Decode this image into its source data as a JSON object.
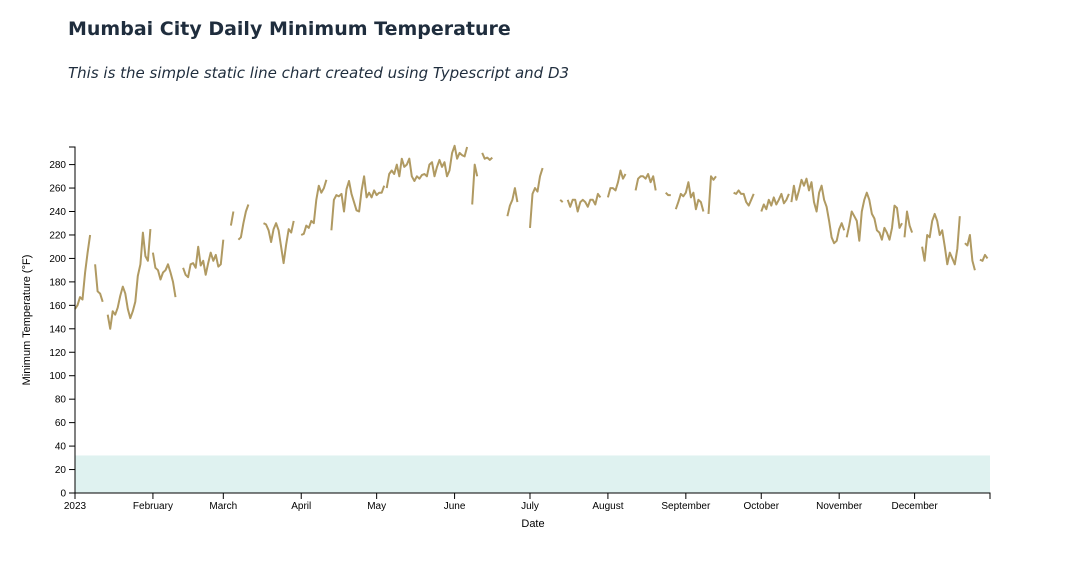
{
  "header": {
    "title": "Mumbai City Daily Minimum Temperature",
    "subtitle": "This is the simple static line chart created using Typescript and D3"
  },
  "chart_data": {
    "type": "line",
    "xlabel": "Date",
    "ylabel": "Minimum Temperature (°F)",
    "x_domain": [
      "2023-01-01",
      "2023-12-31"
    ],
    "xlim": [
      "2023-01-01",
      "2023-12-31"
    ],
    "ylim": [
      0,
      295
    ],
    "y_ticks": [
      0,
      20,
      40,
      60,
      80,
      100,
      120,
      140,
      160,
      180,
      200,
      220,
      240,
      260,
      280
    ],
    "x_ticks": [
      {
        "date": "2023-01-01",
        "label": "2023"
      },
      {
        "date": "2023-02-01",
        "label": "February"
      },
      {
        "date": "2023-03-01",
        "label": "March"
      },
      {
        "date": "2023-04-01",
        "label": "April"
      },
      {
        "date": "2023-05-01",
        "label": "May"
      },
      {
        "date": "2023-06-01",
        "label": "June"
      },
      {
        "date": "2023-07-01",
        "label": "July"
      },
      {
        "date": "2023-08-01",
        "label": "August"
      },
      {
        "date": "2023-09-01",
        "label": "September"
      },
      {
        "date": "2023-10-01",
        "label": "October"
      },
      {
        "date": "2023-11-01",
        "label": "November"
      },
      {
        "date": "2023-12-01",
        "label": "December"
      }
    ],
    "band": {
      "y0": 0,
      "y1": 32,
      "color": "#dff2f0"
    },
    "line_color": "#b09a62",
    "grid": false,
    "series": [
      {
        "segments": [
          {
            "start": "2023-01-01",
            "values": [
              157,
              160,
              167,
              165,
              188,
              205,
              220
            ]
          },
          {
            "start": "2023-01-09",
            "values": [
              195,
              172,
              170,
              163
            ]
          },
          {
            "start": "2023-01-14",
            "values": [
              152,
              140,
              155,
              152,
              158,
              168,
              176,
              170,
              157,
              149,
              155,
              163,
              185,
              195,
              222,
              202,
              198,
              225
            ]
          },
          {
            "start": "2023-02-01",
            "values": [
              205,
              192,
              190,
              182,
              188,
              190,
              195,
              188,
              180,
              167
            ]
          },
          {
            "start": "2023-02-13",
            "values": [
              192,
              186,
              184,
              195,
              196,
              192,
              210,
              194,
              198,
              186,
              196,
              205,
              198,
              203,
              193,
              195,
              216
            ]
          },
          {
            "start": "2023-03-04",
            "values": [
              228,
              240
            ]
          },
          {
            "start": "2023-03-07",
            "values": [
              216,
              218,
              230,
              240,
              246
            ]
          },
          {
            "start": "2023-03-17",
            "values": [
              230,
              229,
              224,
              214,
              225,
              230,
              224,
              210,
              196,
              212,
              225,
              222,
              232
            ]
          },
          {
            "start": "2023-04-01",
            "values": [
              220,
              221,
              228,
              226,
              232,
              230,
              250,
              262,
              256,
              260,
              267
            ]
          },
          {
            "start": "2023-04-13",
            "values": [
              224,
              250,
              254,
              253,
              255,
              240,
              259,
              266,
              255,
              248,
              241,
              240,
              258,
              270,
              252,
              256,
              252,
              258,
              254,
              256,
              256,
              262
            ]
          },
          {
            "start": "2023-05-05",
            "values": [
              260,
              272,
              275,
              272,
              280,
              270,
              285,
              278,
              280,
              285,
              270,
              266,
              270,
              268,
              271,
              272,
              270,
              280,
              282,
              270,
              278,
              284,
              278,
              282,
              270,
              275,
              290,
              296,
              285,
              290,
              288,
              287,
              295
            ]
          },
          {
            "start": "2023-06-08",
            "values": [
              246,
              280,
              270
            ]
          },
          {
            "start": "2023-06-12",
            "values": [
              290,
              285,
              286,
              284,
              286
            ]
          },
          {
            "start": "2023-06-22",
            "values": [
              236,
              245,
              250,
              260,
              248
            ]
          },
          {
            "start": "2023-07-01",
            "values": [
              226,
              255,
              260,
              257,
              270,
              277
            ]
          },
          {
            "start": "2023-07-13",
            "values": [
              250,
              248
            ]
          },
          {
            "start": "2023-07-16",
            "values": [
              250,
              244,
              250,
              250,
              240,
              248,
              250,
              248,
              244,
              250,
              250,
              246,
              255,
              252
            ]
          },
          {
            "start": "2023-08-01",
            "values": [
              252,
              260,
              260,
              258,
              265,
              275,
              268,
              272
            ]
          },
          {
            "start": "2023-08-12",
            "values": [
              258,
              268,
              270,
              270,
              268,
              272,
              265,
              270,
              258
            ]
          },
          {
            "start": "2023-08-24",
            "values": [
              256,
              254,
              254
            ]
          },
          {
            "start": "2023-08-28",
            "values": [
              242,
              248,
              255,
              253,
              256,
              265,
              252,
              256,
              242,
              250,
              248,
              240
            ]
          },
          {
            "start": "2023-09-10",
            "values": [
              238,
              270,
              267,
              270
            ]
          },
          {
            "start": "2023-09-20",
            "values": [
              256,
              255,
              258,
              255,
              255,
              248,
              245,
              250,
              255
            ]
          },
          {
            "start": "2023-10-01",
            "values": [
              240,
              246,
              242,
              250,
              245,
              252,
              246,
              250,
              255,
              247,
              250,
              255
            ]
          },
          {
            "start": "2023-10-13",
            "values": [
              248,
              262,
              250,
              258,
              267,
              262,
              268,
              258,
              265,
              248,
              240,
              256,
              262,
              250,
              244,
              232,
              218,
              213,
              215,
              225,
              230,
              224
            ]
          },
          {
            "start": "2023-11-04",
            "values": [
              218,
              228,
              240,
              236,
              232,
              215,
              240,
              250,
              256,
              250,
              238,
              234,
              224,
              222,
              216,
              226,
              222,
              216,
              226,
              245,
              243,
              226,
              230
            ]
          },
          {
            "start": "2023-11-27",
            "values": [
              218,
              240,
              228,
              222
            ]
          },
          {
            "start": "2023-12-04",
            "values": [
              210,
              198,
              220,
              218,
              232,
              238,
              232,
              220,
              224,
              210,
              195,
              205,
              200,
              195,
              208,
              236
            ]
          },
          {
            "start": "2023-12-21",
            "values": [
              213,
              211,
              220,
              198,
              190
            ]
          },
          {
            "start": "2023-12-27",
            "values": [
              199,
              198,
              203,
              200
            ]
          }
        ]
      }
    ]
  }
}
